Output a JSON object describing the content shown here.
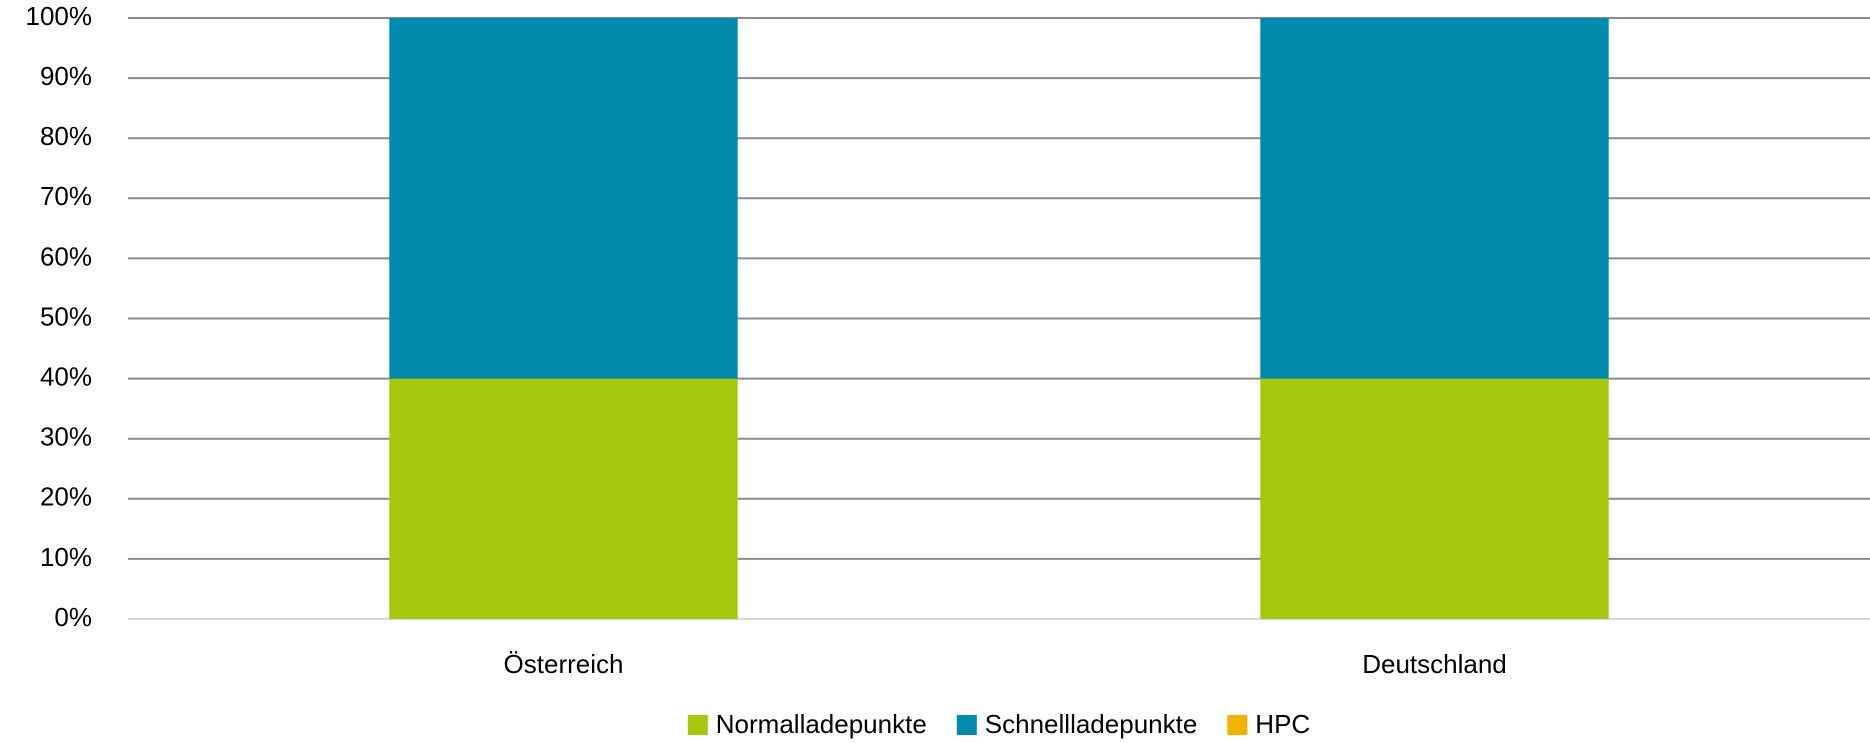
{
  "chart_data": {
    "type": "stacked_bar",
    "categories": [
      "Österreich",
      "Deutschland"
    ],
    "series": [
      {
        "name": "Normalladepunkte",
        "color": "#a5c80f",
        "values": [
          40,
          40
        ]
      },
      {
        "name": "Schnellladepunkte",
        "color": "#008aac",
        "values": [
          60,
          60
        ]
      },
      {
        "name": "HPC",
        "color": "#f0b400",
        "values": [
          0,
          0
        ]
      }
    ],
    "ylim": [
      0,
      100
    ],
    "yticks": [
      {
        "value": 0,
        "label": "0%"
      },
      {
        "value": 10,
        "label": "10%"
      },
      {
        "value": 20,
        "label": "20%"
      },
      {
        "value": 30,
        "label": "30%"
      },
      {
        "value": 40,
        "label": "40%"
      },
      {
        "value": 50,
        "label": "50%"
      },
      {
        "value": 60,
        "label": "60%"
      },
      {
        "value": 70,
        "label": "70%"
      },
      {
        "value": 80,
        "label": "80%"
      },
      {
        "value": 90,
        "label": "90%"
      },
      {
        "value": 100,
        "label": "100%"
      }
    ],
    "grid": true,
    "legend": "bottom"
  }
}
